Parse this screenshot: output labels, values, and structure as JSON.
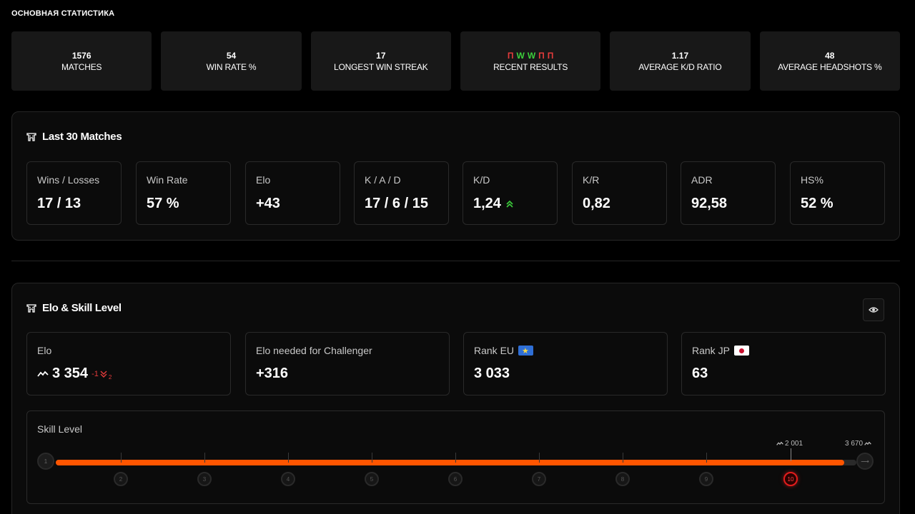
{
  "section_title": "ОСНОВНАЯ СТАТИСТИКА",
  "top_stats": [
    {
      "value": "1576",
      "label": "MATCHES"
    },
    {
      "value": "54",
      "label": "WIN RATE %"
    },
    {
      "value": "17",
      "label": "LONGEST WIN STREAK"
    },
    {
      "value": "",
      "label": "RECENT RESULTS"
    },
    {
      "value": "1.17",
      "label": "AVERAGE K/D RATIO"
    },
    {
      "value": "48",
      "label": "AVERAGE HEADSHOTS %"
    }
  ],
  "recent_results": [
    "П",
    "W",
    "W",
    "П",
    "П"
  ],
  "last30": {
    "title": "Last 30 Matches",
    "metrics": [
      {
        "label": "Wins / Losses",
        "value": "17 / 13"
      },
      {
        "label": "Win Rate",
        "value": "57 %"
      },
      {
        "label": "Elo",
        "value": "+43"
      },
      {
        "label": "K / A / D",
        "value": "17 / 6 / 15"
      },
      {
        "label": "K/D",
        "value": "1,24"
      },
      {
        "label": "K/R",
        "value": "0,82"
      },
      {
        "label": "ADR",
        "value": "92,58"
      },
      {
        "label": "HS%",
        "value": "52 %"
      }
    ]
  },
  "elo_panel": {
    "title": "Elo & Skill Level",
    "elo_label": "Elo",
    "elo_value": "3 354",
    "elo_delta": "-1",
    "elo_delta_sub": "2",
    "challenger_label": "Elo needed for Challenger",
    "challenger_value": "+316",
    "rank_eu_label": "Rank EU",
    "rank_eu_value": "3 033",
    "rank_jp_label": "Rank JP",
    "rank_jp_value": "63"
  },
  "skill": {
    "label": "Skill Level",
    "levels": [
      "1",
      "2",
      "3",
      "4",
      "5",
      "6",
      "7",
      "8",
      "9",
      "10"
    ],
    "current_level": "10",
    "marker_value": "2 001",
    "max_value": "3 670",
    "progress": 0.985
  },
  "colors": {
    "accent": "#ff5500",
    "win": "#3ccf3c",
    "loss": "#e33b3b"
  }
}
